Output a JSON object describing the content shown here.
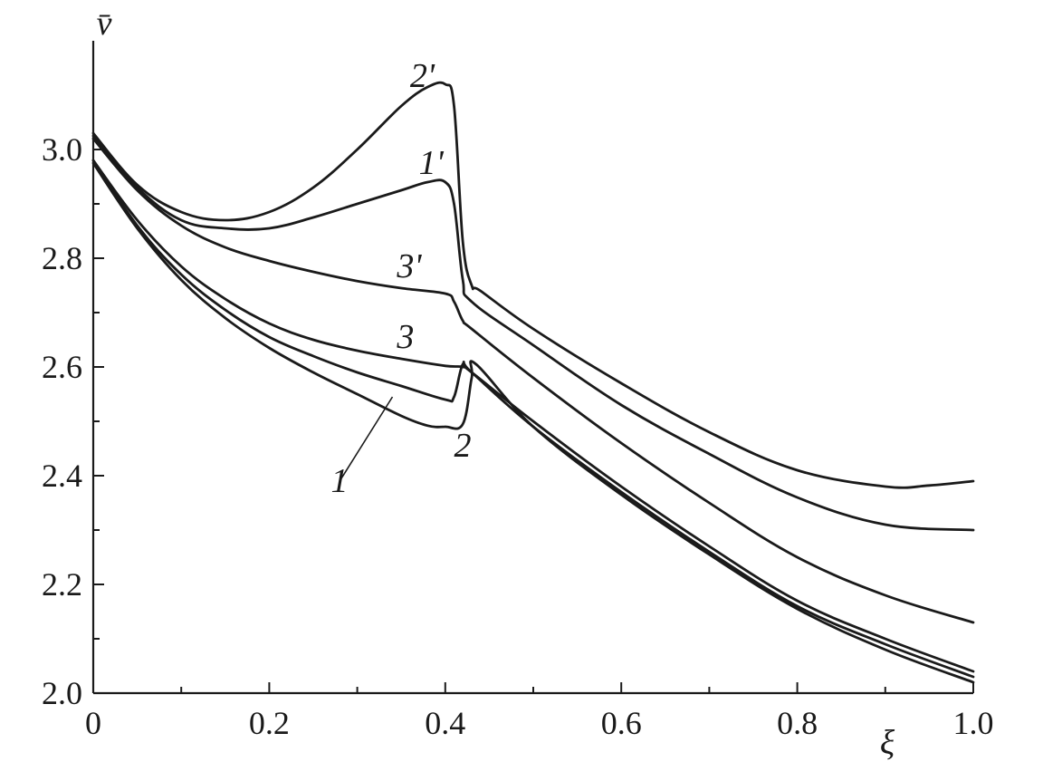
{
  "chart_data": {
    "type": "line",
    "xlabel": "ξ",
    "ylabel": "v̄",
    "xlim": [
      0,
      1.0
    ],
    "ylim": [
      2.0,
      3.2
    ],
    "x_ticks": [
      "0",
      "0.2",
      "0.4",
      "0.6",
      "0.8",
      "1.0"
    ],
    "x_tick_values": [
      0,
      0.2,
      0.4,
      0.6,
      0.8,
      1.0
    ],
    "y_ticks": [
      "2.0",
      "2.2",
      "2.4",
      "2.6",
      "2.8",
      "3.0"
    ],
    "y_tick_values": [
      2.0,
      2.2,
      2.4,
      2.6,
      2.8,
      3.0
    ],
    "grid": false,
    "series": [
      {
        "name": "1",
        "x": [
          0,
          0.05,
          0.1,
          0.15,
          0.2,
          0.25,
          0.3,
          0.35,
          0.4,
          0.41,
          0.42,
          0.43,
          0.5,
          0.6,
          0.7,
          0.8,
          0.9,
          1.0
        ],
        "y": [
          2.98,
          2.86,
          2.77,
          2.705,
          2.655,
          2.62,
          2.59,
          2.565,
          2.54,
          2.545,
          2.605,
          2.59,
          2.49,
          2.37,
          2.26,
          2.16,
          2.09,
          2.03
        ]
      },
      {
        "name": "2",
        "x": [
          0,
          0.05,
          0.1,
          0.15,
          0.2,
          0.25,
          0.3,
          0.35,
          0.38,
          0.4,
          0.42,
          0.43,
          0.435,
          0.5,
          0.6,
          0.7,
          0.8,
          0.9,
          1.0
        ],
        "y": [
          2.975,
          2.855,
          2.76,
          2.69,
          2.635,
          2.59,
          2.55,
          2.51,
          2.492,
          2.49,
          2.495,
          2.58,
          2.605,
          2.49,
          2.365,
          2.255,
          2.155,
          2.08,
          2.02
        ]
      },
      {
        "name": "3",
        "x": [
          0,
          0.05,
          0.1,
          0.15,
          0.2,
          0.25,
          0.3,
          0.35,
          0.4,
          0.42,
          0.43,
          0.5,
          0.6,
          0.7,
          0.8,
          0.9,
          1.0
        ],
        "y": [
          2.98,
          2.87,
          2.785,
          2.725,
          2.68,
          2.65,
          2.63,
          2.615,
          2.602,
          2.6,
          2.59,
          2.5,
          2.38,
          2.27,
          2.17,
          2.1,
          2.04
        ]
      },
      {
        "name": "1'",
        "x": [
          0,
          0.05,
          0.1,
          0.15,
          0.2,
          0.25,
          0.3,
          0.35,
          0.38,
          0.4,
          0.41,
          0.42,
          0.43,
          0.5,
          0.6,
          0.7,
          0.8,
          0.9,
          1.0
        ],
        "y": [
          3.025,
          2.93,
          2.87,
          2.855,
          2.855,
          2.875,
          2.9,
          2.925,
          2.94,
          2.94,
          2.9,
          2.76,
          2.72,
          2.64,
          2.53,
          2.44,
          2.36,
          2.31,
          2.3
        ]
      },
      {
        "name": "2'",
        "x": [
          0,
          0.05,
          0.1,
          0.15,
          0.2,
          0.25,
          0.3,
          0.35,
          0.38,
          0.4,
          0.41,
          0.42,
          0.43,
          0.44,
          0.5,
          0.6,
          0.7,
          0.8,
          0.9,
          0.95,
          1.0
        ],
        "y": [
          3.03,
          2.935,
          2.885,
          2.87,
          2.885,
          2.93,
          3.0,
          3.08,
          3.115,
          3.12,
          3.08,
          2.83,
          2.75,
          2.74,
          2.67,
          2.57,
          2.48,
          2.41,
          2.38,
          2.382,
          2.39
        ]
      },
      {
        "name": "3'",
        "x": [
          0,
          0.05,
          0.1,
          0.15,
          0.2,
          0.25,
          0.3,
          0.35,
          0.4,
          0.41,
          0.42,
          0.43,
          0.5,
          0.6,
          0.7,
          0.8,
          0.9,
          1.0
        ],
        "y": [
          3.02,
          2.925,
          2.86,
          2.82,
          2.795,
          2.775,
          2.758,
          2.745,
          2.735,
          2.72,
          2.685,
          2.67,
          2.58,
          2.46,
          2.35,
          2.25,
          2.18,
          2.13
        ]
      }
    ],
    "annotations": [
      {
        "text": "1",
        "x": 0.27,
        "y": 2.37
      },
      {
        "text": "2",
        "x": 0.41,
        "y": 2.435
      },
      {
        "text": "3",
        "x": 0.345,
        "y": 2.635
      },
      {
        "text": "1'",
        "x": 0.37,
        "y": 2.955
      },
      {
        "text": "2'",
        "x": 0.36,
        "y": 3.115
      },
      {
        "text": "3'",
        "x": 0.345,
        "y": 2.765
      }
    ]
  }
}
